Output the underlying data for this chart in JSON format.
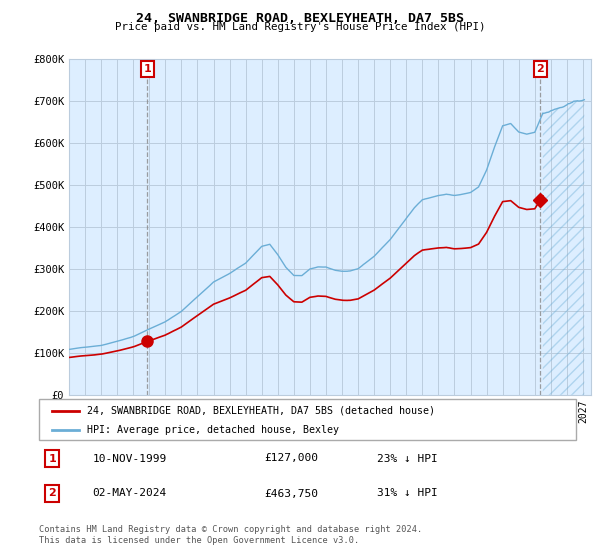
{
  "title": "24, SWANBRIDGE ROAD, BEXLEYHEATH, DA7 5BS",
  "subtitle": "Price paid vs. HM Land Registry's House Price Index (HPI)",
  "ylim": [
    0,
    800000
  ],
  "yticks": [
    0,
    100000,
    200000,
    300000,
    400000,
    500000,
    600000,
    700000,
    800000
  ],
  "ytick_labels": [
    "£0",
    "£100K",
    "£200K",
    "£300K",
    "£400K",
    "£500K",
    "£600K",
    "£700K",
    "£800K"
  ],
  "hpi_color": "#6baed6",
  "price_color": "#cc0000",
  "background_color": "#ffffff",
  "plot_bg_color": "#ddeeff",
  "grid_color": "#bbccdd",
  "sale1_date": 1999.87,
  "sale1_price": 127000,
  "sale2_date": 2024.34,
  "sale2_price": 463750,
  "legend_label_price": "24, SWANBRIDGE ROAD, BEXLEYHEATH, DA7 5BS (detached house)",
  "legend_label_hpi": "HPI: Average price, detached house, Bexley",
  "table_row1": [
    "1",
    "10-NOV-1999",
    "£127,000",
    "23% ↓ HPI"
  ],
  "table_row2": [
    "2",
    "02-MAY-2024",
    "£463,750",
    "31% ↓ HPI"
  ],
  "footnote": "Contains HM Land Registry data © Crown copyright and database right 2024.\nThis data is licensed under the Open Government Licence v3.0.",
  "xlim_start": 1995.0,
  "xlim_end": 2027.5,
  "xticks": [
    1995,
    1996,
    1997,
    1998,
    1999,
    2000,
    2001,
    2002,
    2003,
    2004,
    2005,
    2006,
    2007,
    2008,
    2009,
    2010,
    2011,
    2012,
    2013,
    2014,
    2015,
    2016,
    2017,
    2018,
    2019,
    2020,
    2021,
    2022,
    2023,
    2024,
    2025,
    2026,
    2027
  ]
}
